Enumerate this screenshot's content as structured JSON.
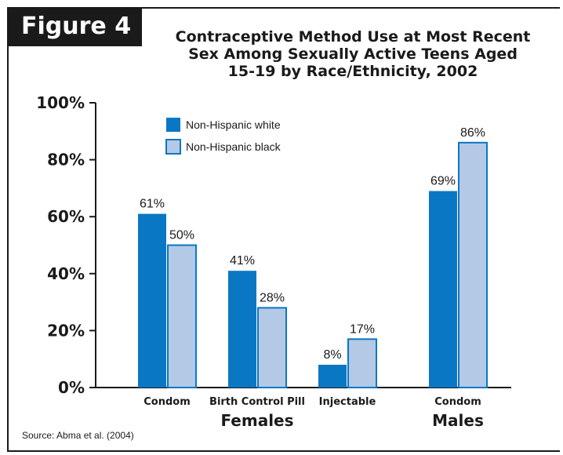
{
  "figure_label": "Figure 4",
  "title_lines": [
    "Contraceptive Method Use at Most Recent",
    "Sex Among Sexually Active Teens Aged",
    "15-19 by Race/Ethnicity, 2002"
  ],
  "source": "Source: Abma et al. (2004)",
  "colors": {
    "white": "#0a77c4",
    "black": "#b3c9e6",
    "outline": "#0a77c4"
  },
  "chart_data": {
    "type": "bar",
    "categories": [
      "Condom",
      "Birth Control Pill",
      "Injectable",
      "Condom"
    ],
    "groups": [
      {
        "name": "Females",
        "categories": [
          "Condom",
          "Birth Control Pill",
          "Injectable"
        ]
      },
      {
        "name": "Males",
        "categories": [
          "Condom"
        ]
      }
    ],
    "series": [
      {
        "name": "Non-Hispanic white",
        "values": [
          61,
          41,
          8,
          69
        ],
        "labels": [
          "61%",
          "41%",
          "8%",
          "69%"
        ]
      },
      {
        "name": "Non-Hispanic black",
        "values": [
          50,
          28,
          17,
          86
        ],
        "labels": [
          "50%",
          "28%",
          "17%",
          "86%"
        ]
      }
    ],
    "yticks": [
      "0%",
      "20%",
      "40%",
      "60%",
      "80%",
      "100%"
    ],
    "ylim": [
      0,
      100
    ],
    "legend_position": "top-left",
    "title": "Contraceptive Method Use at Most Recent Sex Among Sexually Active Teens Aged 15-19 by Race/Ethnicity, 2002"
  }
}
